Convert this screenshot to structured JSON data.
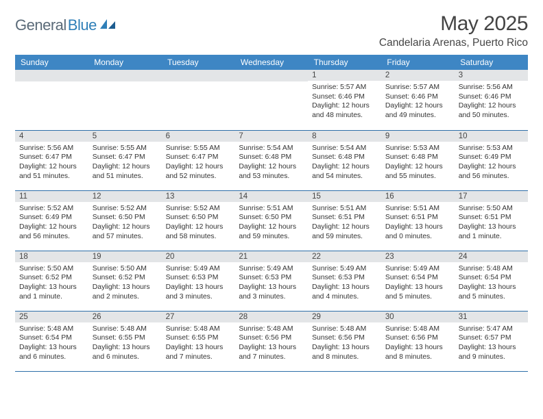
{
  "brand": {
    "name1": "General",
    "name2": "Blue"
  },
  "title": "May 2025",
  "location": "Candelaria Arenas, Puerto Rico",
  "colors": {
    "header_bg": "#3e86c4",
    "header_text": "#ffffff",
    "daynum_bg": "#e3e5e7",
    "row_divider": "#2d6ea8",
    "brand_gray": "#5a6a78",
    "brand_blue": "#2f7fb8",
    "text": "#333333",
    "background": "#ffffff"
  },
  "typography": {
    "title_fontsize": 30,
    "location_fontsize": 15.5,
    "weekday_fontsize": 12,
    "daynum_fontsize": 11.5,
    "cell_fontsize": 10.4
  },
  "weekdays": [
    "Sunday",
    "Monday",
    "Tuesday",
    "Wednesday",
    "Thursday",
    "Friday",
    "Saturday"
  ],
  "labels": {
    "sunrise": "Sunrise:",
    "sunset": "Sunset:",
    "daylight": "Daylight:"
  },
  "weeks": [
    [
      null,
      null,
      null,
      null,
      {
        "day": "1",
        "sunrise": "5:57 AM",
        "sunset": "6:46 PM",
        "daylight": "12 hours and 48 minutes."
      },
      {
        "day": "2",
        "sunrise": "5:57 AM",
        "sunset": "6:46 PM",
        "daylight": "12 hours and 49 minutes."
      },
      {
        "day": "3",
        "sunrise": "5:56 AM",
        "sunset": "6:46 PM",
        "daylight": "12 hours and 50 minutes."
      }
    ],
    [
      {
        "day": "4",
        "sunrise": "5:56 AM",
        "sunset": "6:47 PM",
        "daylight": "12 hours and 51 minutes."
      },
      {
        "day": "5",
        "sunrise": "5:55 AM",
        "sunset": "6:47 PM",
        "daylight": "12 hours and 51 minutes."
      },
      {
        "day": "6",
        "sunrise": "5:55 AM",
        "sunset": "6:47 PM",
        "daylight": "12 hours and 52 minutes."
      },
      {
        "day": "7",
        "sunrise": "5:54 AM",
        "sunset": "6:48 PM",
        "daylight": "12 hours and 53 minutes."
      },
      {
        "day": "8",
        "sunrise": "5:54 AM",
        "sunset": "6:48 PM",
        "daylight": "12 hours and 54 minutes."
      },
      {
        "day": "9",
        "sunrise": "5:53 AM",
        "sunset": "6:48 PM",
        "daylight": "12 hours and 55 minutes."
      },
      {
        "day": "10",
        "sunrise": "5:53 AM",
        "sunset": "6:49 PM",
        "daylight": "12 hours and 56 minutes."
      }
    ],
    [
      {
        "day": "11",
        "sunrise": "5:52 AM",
        "sunset": "6:49 PM",
        "daylight": "12 hours and 56 minutes."
      },
      {
        "day": "12",
        "sunrise": "5:52 AM",
        "sunset": "6:50 PM",
        "daylight": "12 hours and 57 minutes."
      },
      {
        "day": "13",
        "sunrise": "5:52 AM",
        "sunset": "6:50 PM",
        "daylight": "12 hours and 58 minutes."
      },
      {
        "day": "14",
        "sunrise": "5:51 AM",
        "sunset": "6:50 PM",
        "daylight": "12 hours and 59 minutes."
      },
      {
        "day": "15",
        "sunrise": "5:51 AM",
        "sunset": "6:51 PM",
        "daylight": "12 hours and 59 minutes."
      },
      {
        "day": "16",
        "sunrise": "5:51 AM",
        "sunset": "6:51 PM",
        "daylight": "13 hours and 0 minutes."
      },
      {
        "day": "17",
        "sunrise": "5:50 AM",
        "sunset": "6:51 PM",
        "daylight": "13 hours and 1 minute."
      }
    ],
    [
      {
        "day": "18",
        "sunrise": "5:50 AM",
        "sunset": "6:52 PM",
        "daylight": "13 hours and 1 minute."
      },
      {
        "day": "19",
        "sunrise": "5:50 AM",
        "sunset": "6:52 PM",
        "daylight": "13 hours and 2 minutes."
      },
      {
        "day": "20",
        "sunrise": "5:49 AM",
        "sunset": "6:53 PM",
        "daylight": "13 hours and 3 minutes."
      },
      {
        "day": "21",
        "sunrise": "5:49 AM",
        "sunset": "6:53 PM",
        "daylight": "13 hours and 3 minutes."
      },
      {
        "day": "22",
        "sunrise": "5:49 AM",
        "sunset": "6:53 PM",
        "daylight": "13 hours and 4 minutes."
      },
      {
        "day": "23",
        "sunrise": "5:49 AM",
        "sunset": "6:54 PM",
        "daylight": "13 hours and 5 minutes."
      },
      {
        "day": "24",
        "sunrise": "5:48 AM",
        "sunset": "6:54 PM",
        "daylight": "13 hours and 5 minutes."
      }
    ],
    [
      {
        "day": "25",
        "sunrise": "5:48 AM",
        "sunset": "6:54 PM",
        "daylight": "13 hours and 6 minutes."
      },
      {
        "day": "26",
        "sunrise": "5:48 AM",
        "sunset": "6:55 PM",
        "daylight": "13 hours and 6 minutes."
      },
      {
        "day": "27",
        "sunrise": "5:48 AM",
        "sunset": "6:55 PM",
        "daylight": "13 hours and 7 minutes."
      },
      {
        "day": "28",
        "sunrise": "5:48 AM",
        "sunset": "6:56 PM",
        "daylight": "13 hours and 7 minutes."
      },
      {
        "day": "29",
        "sunrise": "5:48 AM",
        "sunset": "6:56 PM",
        "daylight": "13 hours and 8 minutes."
      },
      {
        "day": "30",
        "sunrise": "5:48 AM",
        "sunset": "6:56 PM",
        "daylight": "13 hours and 8 minutes."
      },
      {
        "day": "31",
        "sunrise": "5:47 AM",
        "sunset": "6:57 PM",
        "daylight": "13 hours and 9 minutes."
      }
    ]
  ]
}
